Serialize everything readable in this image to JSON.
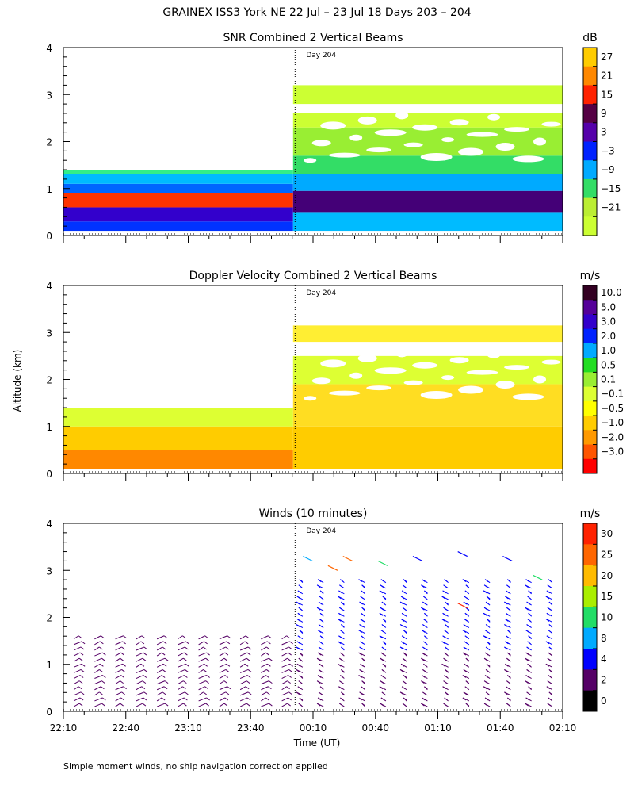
{
  "title": "GRAINEX ISS3 York NE  22 Jul – 23 Jul 18 Days 203 – 204",
  "ylabel": "Altitude (km)",
  "xlabel": "Time (UT)",
  "footnote": "Simple moment winds, no ship navigation correction applied",
  "day_marker": "Day 204",
  "colors": {
    "background": "#ffffff",
    "text": "#000000"
  },
  "chart_data": [
    {
      "type": "heatmap",
      "title": "SNR Combined 2 Vertical Beams",
      "unit": "dB",
      "ylim": [
        0,
        4
      ],
      "yticks": [
        "0",
        "1",
        "2",
        "3",
        "4"
      ],
      "colorbar": {
        "labels": [
          "27",
          "21",
          "15",
          "9",
          "3",
          "−3",
          "−9",
          "−15",
          "−21"
        ],
        "colors": [
          "#ffcc00",
          "#ff8800",
          "#ff2200",
          "#550044",
          "#5500aa",
          "#0022ff",
          "#00aaff",
          "#33dd66",
          "#bbee33",
          "#ccff33"
        ]
      },
      "bands": [
        {
          "t0": 0,
          "t1": 0.46,
          "h0": 0.1,
          "h1": 0.3,
          "c": "#0033ff"
        },
        {
          "t0": 0,
          "t1": 0.46,
          "h0": 0.3,
          "h1": 0.6,
          "c": "#3300cc"
        },
        {
          "t0": 0,
          "t1": 0.46,
          "h0": 0.6,
          "h1": 0.9,
          "c": "#ff3300"
        },
        {
          "t0": 0,
          "t1": 0.46,
          "h0": 0.9,
          "h1": 1.1,
          "c": "#0066ff"
        },
        {
          "t0": 0,
          "t1": 0.46,
          "h0": 1.1,
          "h1": 1.3,
          "c": "#00bbff"
        },
        {
          "t0": 0,
          "t1": 0.46,
          "h0": 1.3,
          "h1": 1.4,
          "c": "#33ee88"
        },
        {
          "t0": 0.46,
          "t1": 1,
          "h0": 0.1,
          "h1": 0.5,
          "c": "#00bbff"
        },
        {
          "t0": 0.46,
          "t1": 1,
          "h0": 0.5,
          "h1": 0.95,
          "c": "#440077"
        },
        {
          "t0": 0.46,
          "t1": 1,
          "h0": 0.95,
          "h1": 1.3,
          "c": "#00aaff"
        },
        {
          "t0": 0.46,
          "t1": 1,
          "h0": 1.3,
          "h1": 1.7,
          "c": "#33dd66"
        },
        {
          "t0": 0.46,
          "t1": 1,
          "h0": 1.7,
          "h1": 2.3,
          "c": "#99ee33"
        },
        {
          "t0": 0.46,
          "t1": 1,
          "h0": 2.3,
          "h1": 2.6,
          "c": "#ccff33"
        },
        {
          "t0": 0.46,
          "t1": 1,
          "h0": 2.8,
          "h1": 3.2,
          "c": "#ccff33"
        }
      ]
    },
    {
      "type": "heatmap",
      "title": "Doppler Velocity Combined 2 Vertical Beams",
      "unit": "m/s",
      "ylim": [
        0,
        4
      ],
      "yticks": [
        "0",
        "1",
        "2",
        "3",
        "4"
      ],
      "colorbar": {
        "labels": [
          "10.0",
          "5.0",
          "3.0",
          "2.0",
          "1.0",
          "0.5",
          "0.1",
          "−0.1",
          "−0.5",
          "−1.0",
          "−2.0",
          "−3.0"
        ],
        "colors": [
          "#330022",
          "#550099",
          "#3300cc",
          "#0022ff",
          "#00aaff",
          "#22dd22",
          "#99ee33",
          "#ddff33",
          "#ffff00",
          "#ffcc00",
          "#ff9900",
          "#ff5500",
          "#ff0000"
        ]
      },
      "bands": [
        {
          "t0": 0,
          "t1": 0.46,
          "h0": 0.1,
          "h1": 0.5,
          "c": "#ff8800"
        },
        {
          "t0": 0,
          "t1": 0.46,
          "h0": 0.5,
          "h1": 1.0,
          "c": "#ffcc00"
        },
        {
          "t0": 0,
          "t1": 0.46,
          "h0": 1.0,
          "h1": 1.4,
          "c": "#ddff33"
        },
        {
          "t0": 0.46,
          "t1": 1,
          "h0": 0.1,
          "h1": 1.0,
          "c": "#ffcc00"
        },
        {
          "t0": 0.46,
          "t1": 1,
          "h0": 1.0,
          "h1": 1.9,
          "c": "#ffdd22"
        },
        {
          "t0": 0.46,
          "t1": 1,
          "h0": 1.9,
          "h1": 2.5,
          "c": "#ddff33"
        },
        {
          "t0": 0.46,
          "t1": 1,
          "h0": 2.8,
          "h1": 3.15,
          "c": "#ffee33"
        }
      ]
    },
    {
      "type": "wind_barbs",
      "title": "Winds (10 minutes)",
      "unit": "m/s",
      "ylim": [
        0,
        4
      ],
      "yticks": [
        "0",
        "1",
        "2",
        "3",
        "4"
      ],
      "colorbar": {
        "labels": [
          "30",
          "25",
          "20",
          "15",
          "10",
          "8",
          "4",
          "2",
          "0"
        ],
        "colors": [
          "#ff2200",
          "#ff6600",
          "#ffbb00",
          "#aaee00",
          "#22dd66",
          "#00aaff",
          "#0000ff",
          "#550066",
          "#000000"
        ]
      },
      "barb_columns": 24,
      "barb_top_before_day204": 1.6,
      "barb_top_after_day204": 2.8
    }
  ],
  "xaxis": {
    "ticks": [
      "22:10",
      "22:40",
      "23:10",
      "23:40",
      "00:10",
      "00:40",
      "01:10",
      "01:40",
      "02:10"
    ]
  }
}
